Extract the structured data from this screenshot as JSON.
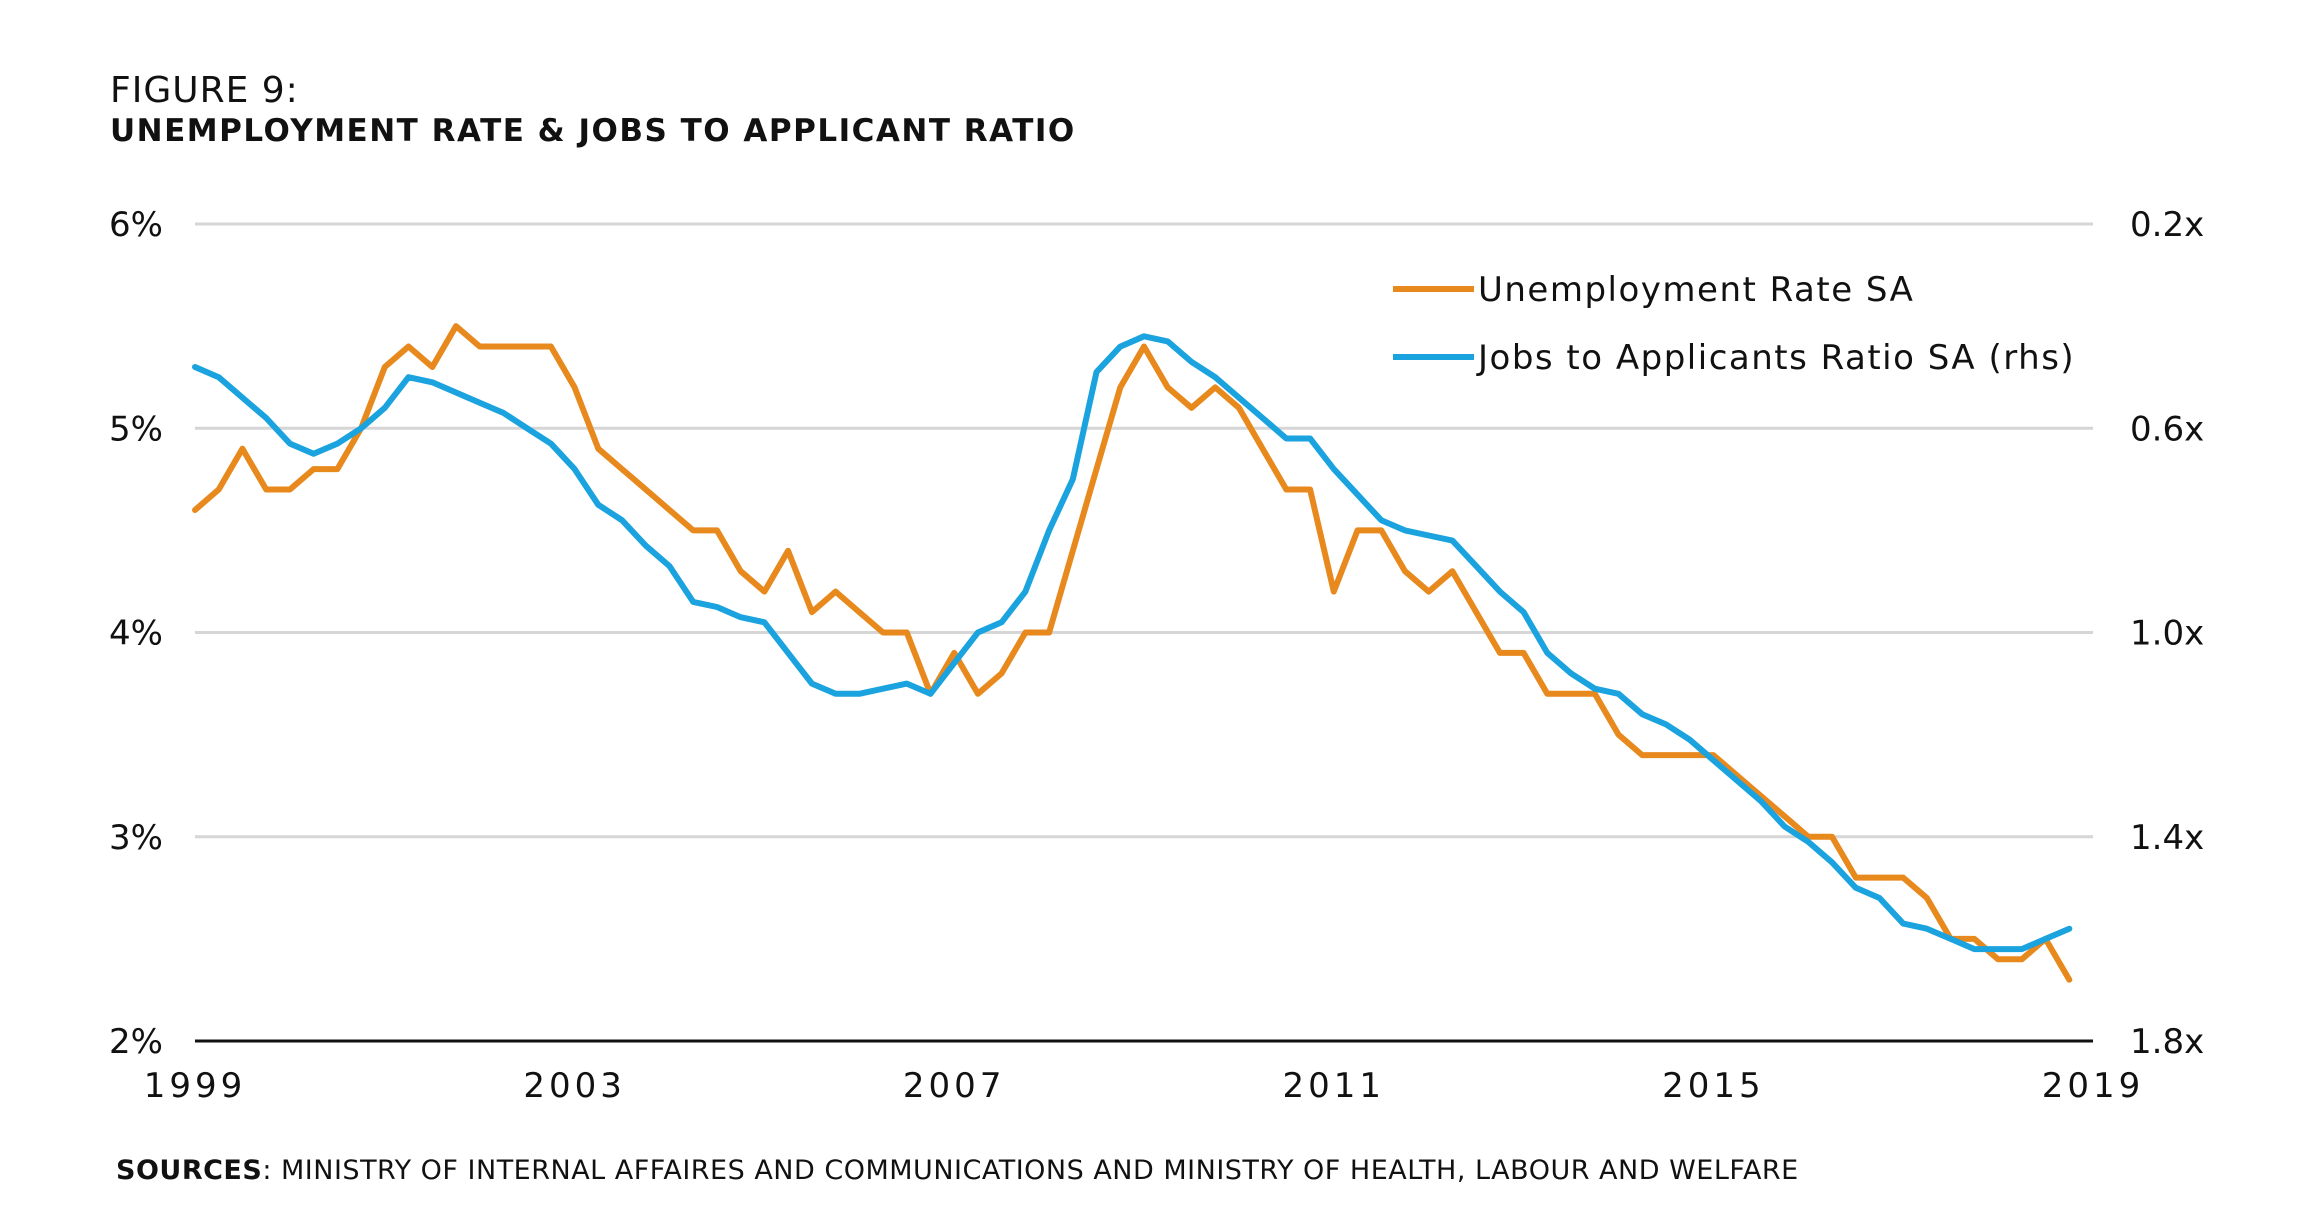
{
  "figure_label": "FIGURE 9:",
  "figure_title": "UNEMPLOYMENT RATE & JOBS TO APPLICANT RATIO",
  "sources_prefix": "SOURCES",
  "sources_text": ": MINISTRY OF INTERNAL AFFAIRES AND COMMUNICATIONS AND MINISTRY OF HEALTH, LABOUR AND WELFARE",
  "colors": {
    "unemployment": "#E8891E",
    "jobs_ratio": "#1AA3DE",
    "grid": "#d6d6d6",
    "axis": "#111111"
  },
  "chart_data": {
    "type": "line",
    "grid": true,
    "legend_placement": "top-right",
    "x_ticks": [
      "1999",
      "2003",
      "2007",
      "2011",
      "2015",
      "2019"
    ],
    "xlim": [
      1999,
      2019
    ],
    "y_left": {
      "ticks": [
        "6%",
        "5%",
        "4%",
        "3%",
        "2%"
      ],
      "lim": [
        2,
        6
      ]
    },
    "y_right": {
      "ticks": [
        "0.2x",
        "0.6x",
        "1.0x",
        "1.4x",
        "1.8x"
      ],
      "lim": [
        0.2,
        1.8
      ],
      "inverted": true
    },
    "series": [
      {
        "name": "Unemployment Rate SA",
        "axis": "left",
        "x": [
          1999.0,
          1999.25,
          1999.5,
          1999.75,
          2000.0,
          2000.25,
          2000.5,
          2000.75,
          2001.0,
          2001.25,
          2001.5,
          2001.75,
          2002.0,
          2002.25,
          2002.5,
          2002.75,
          2003.0,
          2003.25,
          2003.5,
          2003.75,
          2004.0,
          2004.25,
          2004.5,
          2004.75,
          2005.0,
          2005.25,
          2005.5,
          2005.75,
          2006.0,
          2006.25,
          2006.5,
          2006.75,
          2007.0,
          2007.25,
          2007.5,
          2007.75,
          2008.0,
          2008.25,
          2008.5,
          2008.75,
          2009.0,
          2009.25,
          2009.5,
          2009.75,
          2010.0,
          2010.25,
          2010.5,
          2010.75,
          2011.0,
          2011.25,
          2011.5,
          2011.75,
          2012.0,
          2012.25,
          2012.5,
          2012.75,
          2013.0,
          2013.25,
          2013.5,
          2013.75,
          2014.0,
          2014.25,
          2014.5,
          2014.75,
          2015.0,
          2015.25,
          2015.5,
          2015.75,
          2016.0,
          2016.25,
          2016.5,
          2016.75,
          2017.0,
          2017.25,
          2017.5,
          2017.75,
          2018.0,
          2018.25,
          2018.5,
          2018.75
        ],
        "values": [
          4.6,
          4.7,
          4.9,
          4.7,
          4.7,
          4.8,
          4.8,
          5.0,
          5.3,
          5.4,
          5.3,
          5.5,
          5.4,
          5.4,
          5.4,
          5.4,
          5.2,
          4.9,
          4.8,
          4.7,
          4.6,
          4.5,
          4.5,
          4.3,
          4.2,
          4.4,
          4.1,
          4.2,
          4.1,
          4.0,
          4.0,
          3.7,
          3.9,
          3.7,
          3.8,
          4.0,
          4.0,
          4.4,
          4.8,
          5.2,
          5.4,
          5.2,
          5.1,
          5.2,
          5.1,
          4.9,
          4.7,
          4.7,
          4.2,
          4.5,
          4.5,
          4.3,
          4.2,
          4.3,
          4.1,
          3.9,
          3.9,
          3.7,
          3.7,
          3.7,
          3.5,
          3.4,
          3.4,
          3.4,
          3.4,
          3.3,
          3.2,
          3.1,
          3.0,
          3.0,
          2.8,
          2.8,
          2.8,
          2.7,
          2.5,
          2.5,
          2.4,
          2.4,
          2.5,
          2.3
        ]
      },
      {
        "name": "Jobs to Applicants Ratio SA (rhs)",
        "axis": "right",
        "x": [
          1999.0,
          1999.25,
          1999.5,
          1999.75,
          2000.0,
          2000.25,
          2000.5,
          2000.75,
          2001.0,
          2001.25,
          2001.5,
          2001.75,
          2002.0,
          2002.25,
          2002.5,
          2002.75,
          2003.0,
          2003.25,
          2003.5,
          2003.75,
          2004.0,
          2004.25,
          2004.5,
          2004.75,
          2005.0,
          2005.25,
          2005.5,
          2005.75,
          2006.0,
          2006.25,
          2006.5,
          2006.75,
          2007.0,
          2007.25,
          2007.5,
          2007.75,
          2008.0,
          2008.25,
          2008.5,
          2008.75,
          2009.0,
          2009.25,
          2009.5,
          2009.75,
          2010.0,
          2010.25,
          2010.5,
          2010.75,
          2011.0,
          2011.25,
          2011.5,
          2011.75,
          2012.0,
          2012.25,
          2012.5,
          2012.75,
          2013.0,
          2013.25,
          2013.5,
          2013.75,
          2014.0,
          2014.25,
          2014.5,
          2014.75,
          2015.0,
          2015.25,
          2015.5,
          2015.75,
          2016.0,
          2016.25,
          2016.5,
          2016.75,
          2017.0,
          2017.25,
          2017.5,
          2017.75,
          2018.0,
          2018.25,
          2018.5,
          2018.75
        ],
        "values": [
          0.48,
          0.5,
          0.54,
          0.58,
          0.63,
          0.65,
          0.63,
          0.6,
          0.56,
          0.5,
          0.51,
          0.53,
          0.55,
          0.57,
          0.6,
          0.63,
          0.68,
          0.75,
          0.78,
          0.83,
          0.87,
          0.94,
          0.95,
          0.97,
          0.98,
          1.04,
          1.1,
          1.12,
          1.12,
          1.11,
          1.1,
          1.12,
          1.06,
          1.0,
          0.98,
          0.92,
          0.8,
          0.7,
          0.49,
          0.44,
          0.42,
          0.43,
          0.47,
          0.5,
          0.54,
          0.58,
          0.62,
          0.62,
          0.68,
          0.73,
          0.78,
          0.8,
          0.81,
          0.82,
          0.87,
          0.92,
          0.96,
          1.04,
          1.08,
          1.11,
          1.12,
          1.16,
          1.18,
          1.21,
          1.25,
          1.29,
          1.33,
          1.38,
          1.41,
          1.45,
          1.5,
          1.52,
          1.57,
          1.58,
          1.6,
          1.62,
          1.62,
          1.62,
          1.6,
          1.58
        ]
      }
    ]
  }
}
